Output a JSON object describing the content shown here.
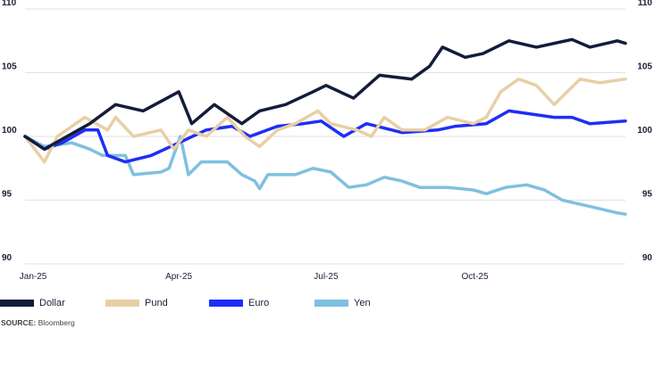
{
  "chart_data": {
    "type": "line",
    "title": "",
    "xlabel": "",
    "ylabel": "",
    "xlim": [
      -5,
      366
    ],
    "ylim": [
      90,
      110
    ],
    "yticks": [
      90,
      95,
      100,
      105,
      110
    ],
    "xticks": [
      {
        "value": 0,
        "label": "Jan-25"
      },
      {
        "value": 90,
        "label": "Apr-25"
      },
      {
        "value": 181,
        "label": "Jul-25"
      },
      {
        "value": 273,
        "label": "Oct-25"
      }
    ],
    "grid": true,
    "legend_position": "bottom",
    "series": [
      {
        "name": "Yen",
        "color": "#7fc0e0",
        "x": [
          -5,
          7,
          24,
          35,
          43,
          57,
          62,
          79,
          84,
          91,
          96,
          104,
          120,
          129,
          137,
          140,
          145,
          162,
          173,
          184,
          195,
          206,
          217,
          228,
          239,
          256,
          272,
          280,
          292,
          305,
          316,
          327,
          344,
          361,
          366
        ],
        "y": [
          100,
          99.2,
          99.5,
          99,
          98.5,
          98.5,
          97,
          97.2,
          97.5,
          100,
          97,
          98,
          98,
          97,
          96.5,
          95.9,
          97,
          97,
          97.5,
          97.2,
          96,
          96.2,
          96.8,
          96.5,
          96,
          96,
          95.8,
          95.5,
          96,
          96.2,
          95.8,
          95,
          94.5,
          94,
          93.9
        ]
      },
      {
        "name": "Euro",
        "color": "#1f2ef5",
        "x": [
          -5,
          7,
          18,
          32,
          40,
          46,
          57,
          73,
          90,
          107,
          123,
          134,
          151,
          167,
          178,
          192,
          206,
          228,
          250,
          261,
          280,
          294,
          322,
          333,
          344,
          366
        ],
        "y": [
          100,
          99,
          99.5,
          100.5,
          100.5,
          98.5,
          98,
          98.5,
          99.5,
          100.5,
          100.8,
          100,
          100.8,
          101,
          101.2,
          100,
          101,
          100.3,
          100.5,
          100.8,
          101,
          102,
          101.5,
          101.5,
          101,
          101.2
        ]
      },
      {
        "name": "Pund",
        "color": "#e8cfa6",
        "x": [
          -5,
          7,
          15,
          32,
          46,
          51,
          62,
          79,
          87,
          96,
          107,
          120,
          131,
          140,
          151,
          162,
          176,
          184,
          200,
          209,
          217,
          228,
          242,
          256,
          272,
          280,
          289,
          300,
          311,
          322,
          338,
          350,
          366
        ],
        "y": [
          100,
          98,
          100,
          101.5,
          100.5,
          101.5,
          100,
          100.5,
          99,
          100.5,
          100,
          101.5,
          100,
          99.2,
          100.5,
          101,
          102,
          101,
          100.5,
          100,
          101.5,
          100.5,
          100.5,
          101.5,
          101,
          101.5,
          103.5,
          104.5,
          104,
          102.5,
          104.5,
          104.2,
          104.5
        ]
      },
      {
        "name": "Dollar",
        "color": "#141c3c",
        "x": [
          -5,
          7,
          35,
          51,
          68,
          90,
          98,
          112,
          129,
          140,
          156,
          173,
          181,
          198,
          214,
          234,
          245,
          253,
          267,
          278,
          294,
          311,
          333,
          344,
          361,
          366
        ],
        "y": [
          100,
          99,
          101,
          102.5,
          102,
          103.5,
          101,
          102.5,
          101,
          102,
          102.5,
          103.5,
          104,
          103,
          104.8,
          104.5,
          105.5,
          107,
          106.2,
          106.5,
          107.5,
          107,
          107.6,
          107,
          107.5,
          107.3
        ]
      }
    ]
  },
  "legend": [
    "Dollar",
    "Pund",
    "Euro",
    "Yen"
  ],
  "source": {
    "label": "SOURCE:",
    "text": "Bloomberg"
  }
}
